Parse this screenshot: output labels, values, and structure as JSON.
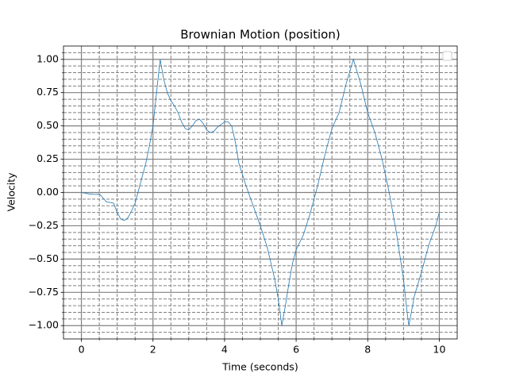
{
  "chart_data": {
    "type": "line",
    "title": "Brownian Motion (position)",
    "xlabel": "Time (seconds)",
    "ylabel": "Velocity",
    "x": [
      0,
      0.2,
      0.4,
      0.5,
      0.6,
      0.7,
      0.9,
      1.0,
      1.1,
      1.2,
      1.3,
      1.4,
      1.5,
      1.6,
      1.7,
      1.8,
      1.9,
      2.0,
      2.1,
      2.2,
      2.3,
      2.4,
      2.5,
      2.6,
      2.7,
      2.8,
      2.9,
      3.0,
      3.1,
      3.2,
      3.3,
      3.4,
      3.5,
      3.6,
      3.7,
      3.8,
      3.9,
      4.0,
      4.1,
      4.2,
      4.3,
      4.4,
      4.6,
      4.8,
      5.0,
      5.2,
      5.4,
      5.5,
      5.6,
      5.7,
      5.8,
      5.9,
      6.0,
      6.2,
      6.4,
      6.6,
      6.8,
      7.0,
      7.2,
      7.4,
      7.6,
      7.8,
      8.0,
      8.2,
      8.4,
      8.6,
      8.8,
      9.0,
      9.1,
      9.15,
      9.3,
      9.5,
      9.7,
      9.9,
      10.0
    ],
    "series": [
      {
        "color": "#1f77b4",
        "values": [
          0,
          -0.01,
          -0.015,
          -0.01,
          -0.04,
          -0.07,
          -0.08,
          -0.15,
          -0.2,
          -0.21,
          -0.19,
          -0.14,
          -0.08,
          0.02,
          0.12,
          0.22,
          0.35,
          0.5,
          0.75,
          1.0,
          0.85,
          0.75,
          0.69,
          0.65,
          0.6,
          0.53,
          0.48,
          0.47,
          0.5,
          0.54,
          0.55,
          0.52,
          0.47,
          0.45,
          0.46,
          0.49,
          0.51,
          0.53,
          0.53,
          0.5,
          0.38,
          0.22,
          0.05,
          -0.1,
          -0.25,
          -0.42,
          -0.65,
          -0.8,
          -1.0,
          -0.85,
          -0.68,
          -0.53,
          -0.43,
          -0.32,
          -0.15,
          0.05,
          0.28,
          0.48,
          0.6,
          0.82,
          1.0,
          0.82,
          0.6,
          0.45,
          0.25,
          0.0,
          -0.3,
          -0.65,
          -0.9,
          -1.0,
          -0.78,
          -0.6,
          -0.4,
          -0.25,
          -0.15
        ]
      }
    ],
    "xlim": [
      -0.5,
      10.5
    ],
    "ylim": [
      -1.1,
      1.1
    ],
    "xticks": [
      0,
      2,
      4,
      6,
      8,
      10
    ],
    "yticks": [
      {
        "value": -1,
        "label": "−1.00"
      },
      {
        "value": -0.75,
        "label": "−0.75"
      },
      {
        "value": -0.5,
        "label": "−0.50"
      },
      {
        "value": -0.25,
        "label": "−0.25"
      },
      {
        "value": 0,
        "label": "0.00"
      },
      {
        "value": 0.25,
        "label": "0.25"
      },
      {
        "value": 0.5,
        "label": "0.50"
      },
      {
        "value": 0.75,
        "label": "0.75"
      },
      {
        "value": 1,
        "label": "1.00"
      }
    ],
    "xminorticks": [
      0.5,
      1,
      1.5,
      2.5,
      3,
      3.5,
      4.5,
      5,
      5.5,
      6.5,
      7,
      7.5,
      8.5,
      9,
      9.5
    ],
    "yminorticks": [
      -1.05,
      -0.95,
      -0.9,
      -0.85,
      -0.8,
      -0.7,
      -0.65,
      -0.6,
      -0.55,
      -0.45,
      -0.4,
      -0.35,
      -0.3,
      -0.2,
      -0.15,
      -0.1,
      -0.05,
      0.05,
      0.1,
      0.15,
      0.2,
      0.3,
      0.35,
      0.4,
      0.45,
      0.55,
      0.6,
      0.65,
      0.7,
      0.8,
      0.85,
      0.9,
      0.95,
      1.05
    ],
    "grid": true,
    "minor_grid": true,
    "legend": "upper right"
  }
}
